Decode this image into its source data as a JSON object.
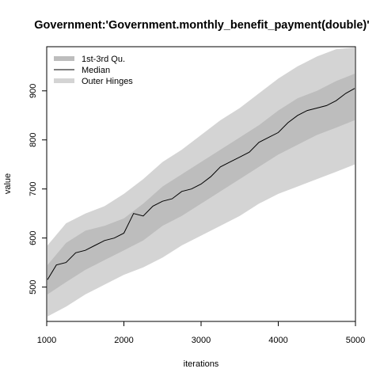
{
  "chart_data": {
    "type": "area",
    "title": "Government:'Government.monthly_benefit_payment(double)'",
    "xlabel": "iterations",
    "ylabel": "value",
    "xlim": [
      1000,
      5000
    ],
    "ylim": [
      430,
      990
    ],
    "xticks": [
      1000,
      2000,
      3000,
      4000,
      5000
    ],
    "yticks": [
      500,
      600,
      700,
      800,
      900
    ],
    "grid": false,
    "legend_position": "top-left",
    "colors": {
      "outer_hinges": "#d4d4d4",
      "iqr": "#bdbdbd",
      "median": "#000000"
    },
    "series": [
      {
        "name": "1st-3rd Qu.",
        "kind": "band",
        "points": [
          {
            "x": 1000,
            "lower": 485,
            "upper": 545
          },
          {
            "x": 1250,
            "lower": 510,
            "upper": 590
          },
          {
            "x": 1500,
            "lower": 535,
            "upper": 615
          },
          {
            "x": 1750,
            "lower": 555,
            "upper": 625
          },
          {
            "x": 2000,
            "lower": 575,
            "upper": 640
          },
          {
            "x": 2250,
            "lower": 595,
            "upper": 670
          },
          {
            "x": 2500,
            "lower": 625,
            "upper": 705
          },
          {
            "x": 2750,
            "lower": 645,
            "upper": 730
          },
          {
            "x": 3000,
            "lower": 670,
            "upper": 755
          },
          {
            "x": 3250,
            "lower": 695,
            "upper": 780
          },
          {
            "x": 3500,
            "lower": 720,
            "upper": 805
          },
          {
            "x": 3750,
            "lower": 745,
            "upper": 830
          },
          {
            "x": 4000,
            "lower": 770,
            "upper": 860
          },
          {
            "x": 4250,
            "lower": 790,
            "upper": 885
          },
          {
            "x": 4500,
            "lower": 810,
            "upper": 900
          },
          {
            "x": 4750,
            "lower": 825,
            "upper": 920
          },
          {
            "x": 5000,
            "lower": 840,
            "upper": 935
          }
        ]
      },
      {
        "name": "Median",
        "kind": "line",
        "points": [
          {
            "x": 1000,
            "y": 515
          },
          {
            "x": 1125,
            "y": 545
          },
          {
            "x": 1250,
            "y": 550
          },
          {
            "x": 1375,
            "y": 570
          },
          {
            "x": 1500,
            "y": 575
          },
          {
            "x": 1625,
            "y": 585
          },
          {
            "x": 1750,
            "y": 595
          },
          {
            "x": 1875,
            "y": 600
          },
          {
            "x": 2000,
            "y": 610
          },
          {
            "x": 2125,
            "y": 650
          },
          {
            "x": 2250,
            "y": 645
          },
          {
            "x": 2375,
            "y": 665
          },
          {
            "x": 2500,
            "y": 675
          },
          {
            "x": 2625,
            "y": 680
          },
          {
            "x": 2750,
            "y": 695
          },
          {
            "x": 2875,
            "y": 700
          },
          {
            "x": 3000,
            "y": 710
          },
          {
            "x": 3125,
            "y": 725
          },
          {
            "x": 3250,
            "y": 745
          },
          {
            "x": 3375,
            "y": 755
          },
          {
            "x": 3500,
            "y": 765
          },
          {
            "x": 3625,
            "y": 775
          },
          {
            "x": 3750,
            "y": 795
          },
          {
            "x": 3875,
            "y": 805
          },
          {
            "x": 4000,
            "y": 815
          },
          {
            "x": 4125,
            "y": 835
          },
          {
            "x": 4250,
            "y": 850
          },
          {
            "x": 4375,
            "y": 860
          },
          {
            "x": 4500,
            "y": 865
          },
          {
            "x": 4625,
            "y": 870
          },
          {
            "x": 4750,
            "y": 880
          },
          {
            "x": 4875,
            "y": 895
          },
          {
            "x": 5000,
            "y": 905
          }
        ]
      },
      {
        "name": "Outer Hinges",
        "kind": "band",
        "points": [
          {
            "x": 1000,
            "lower": 440,
            "upper": 585
          },
          {
            "x": 1250,
            "lower": 460,
            "upper": 630
          },
          {
            "x": 1500,
            "lower": 485,
            "upper": 650
          },
          {
            "x": 1750,
            "lower": 505,
            "upper": 665
          },
          {
            "x": 2000,
            "lower": 525,
            "upper": 690
          },
          {
            "x": 2250,
            "lower": 540,
            "upper": 720
          },
          {
            "x": 2500,
            "lower": 560,
            "upper": 755
          },
          {
            "x": 2750,
            "lower": 585,
            "upper": 780
          },
          {
            "x": 3000,
            "lower": 605,
            "upper": 810
          },
          {
            "x": 3250,
            "lower": 625,
            "upper": 840
          },
          {
            "x": 3500,
            "lower": 645,
            "upper": 865
          },
          {
            "x": 3750,
            "lower": 670,
            "upper": 895
          },
          {
            "x": 4000,
            "lower": 690,
            "upper": 925
          },
          {
            "x": 4250,
            "lower": 705,
            "upper": 950
          },
          {
            "x": 4500,
            "lower": 720,
            "upper": 970
          },
          {
            "x": 4750,
            "lower": 735,
            "upper": 985
          },
          {
            "x": 5000,
            "lower": 750,
            "upper": 990
          }
        ]
      }
    ]
  }
}
